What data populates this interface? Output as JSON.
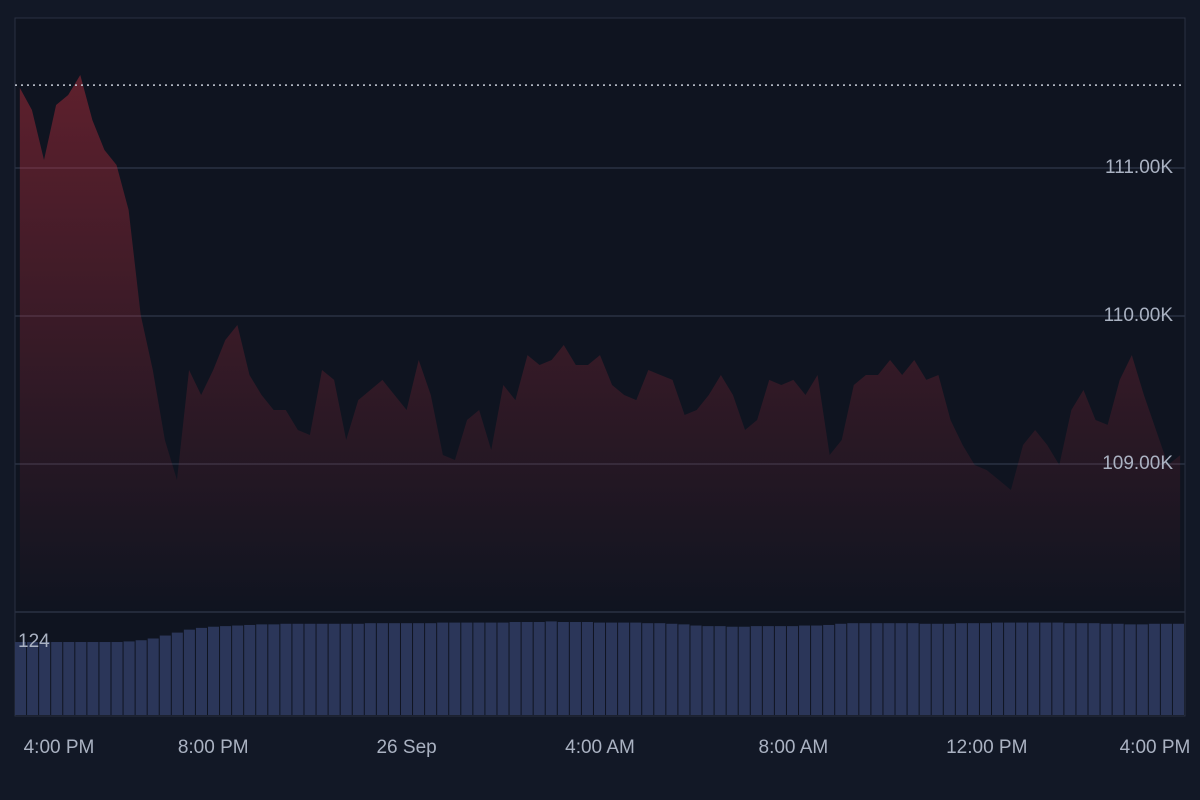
{
  "chart_data": {
    "type": "line",
    "x": [
      0,
      0.25,
      0.5,
      0.75,
      1,
      1.25,
      1.5,
      1.75,
      2,
      2.25,
      2.5,
      2.75,
      3,
      3.25,
      3.5,
      3.75,
      4,
      4.25,
      4.5,
      4.75,
      5,
      5.25,
      5.5,
      5.75,
      6,
      6.25,
      6.5,
      6.75,
      7,
      7.25,
      7.5,
      7.75,
      8,
      8.25,
      8.5,
      8.75,
      9,
      9.25,
      9.5,
      9.75,
      10,
      10.25,
      10.5,
      10.75,
      11,
      11.25,
      11.5,
      11.75,
      12,
      12.25,
      12.5,
      12.75,
      13,
      13.25,
      13.5,
      13.75,
      14,
      14.25,
      14.5,
      14.75,
      15,
      15.25,
      15.5,
      15.75,
      16,
      16.25,
      16.5,
      16.75,
      17,
      17.25,
      17.5,
      17.75,
      18,
      18.25,
      18.5,
      18.75,
      19,
      19.25,
      19.5,
      19.75,
      20,
      20.25,
      20.5,
      20.75,
      21,
      21.25,
      21.5,
      21.75,
      22,
      22.25,
      22.5,
      22.75,
      23,
      23.25,
      23.5,
      23.75,
      24
    ],
    "series": [
      {
        "color": "#f23645",
        "values": [
          111541,
          111392,
          111054,
          111426,
          111493,
          111628,
          111324,
          111122,
          111020,
          110716,
          110007,
          109635,
          109162,
          108892,
          109635,
          109466,
          109635,
          109838,
          109939,
          109601,
          109466,
          109365,
          109365,
          109230,
          109196,
          109635,
          109568,
          109162,
          109432,
          109500,
          109568,
          109466,
          109365,
          109703,
          109466,
          109061,
          109027,
          109297,
          109365,
          109095,
          109534,
          109432,
          109736,
          109669,
          109703,
          109804,
          109669,
          109669,
          109736,
          109534,
          109466,
          109432,
          109635,
          109601,
          109568,
          109331,
          109365,
          109466,
          109601,
          109466,
          109230,
          109297,
          109568,
          109534,
          109568,
          109466,
          109601,
          109061,
          109162,
          109534,
          109601,
          109601,
          109703,
          109601,
          109703,
          109568,
          109601,
          109297,
          109128,
          108993,
          108959,
          108892,
          108824,
          109128,
          109230,
          109128,
          108993,
          109365,
          109500,
          109297,
          109264,
          109568,
          109736,
          109466,
          109230,
          108993,
          109060
        ]
      }
    ],
    "baseline": 111560,
    "up_color": "#22c55e",
    "volume": {
      "color": "#2b3659",
      "ylim": [
        0,
        175
      ],
      "ticks": [
        124
      ],
      "values": [
        124,
        124,
        124,
        124,
        124,
        124,
        124,
        124,
        124,
        125,
        127,
        130,
        135,
        140,
        145,
        148,
        150,
        151,
        152,
        153,
        154,
        154,
        155,
        155,
        155,
        155,
        155,
        155,
        155,
        156,
        156,
        156,
        156,
        156,
        156,
        157,
        157,
        157,
        157,
        157,
        157,
        158,
        158,
        158,
        159,
        158,
        158,
        158,
        157,
        157,
        157,
        157,
        156,
        156,
        155,
        154,
        152,
        151,
        151,
        150,
        150,
        151,
        151,
        151,
        151,
        152,
        152,
        153,
        155,
        156,
        156,
        156,
        156,
        156,
        156,
        155,
        155,
        155,
        156,
        156,
        156,
        157,
        157,
        157,
        157,
        157,
        157,
        156,
        156,
        156,
        155,
        155,
        154,
        154,
        155,
        155,
        155
      ]
    },
    "xlim": [
      -0.1,
      24.1
    ],
    "xticks": [
      {
        "value": 0,
        "label": "4:00 PM"
      },
      {
        "value": 4,
        "label": "8:00 PM"
      },
      {
        "value": 8,
        "label": "26 Sep"
      },
      {
        "value": 12,
        "label": "4:00 AM"
      },
      {
        "value": 16,
        "label": "8:00 AM"
      },
      {
        "value": 20,
        "label": "12:00 PM"
      },
      {
        "value": 24,
        "label": "4:00 PM"
      }
    ],
    "ylim": [
      108000,
      112000
    ],
    "yticks": [
      {
        "value": 109000,
        "label": "109.00K"
      },
      {
        "value": 110000,
        "label": "110.00K"
      },
      {
        "value": 111000,
        "label": "111.00K"
      }
    ],
    "grid": true
  }
}
